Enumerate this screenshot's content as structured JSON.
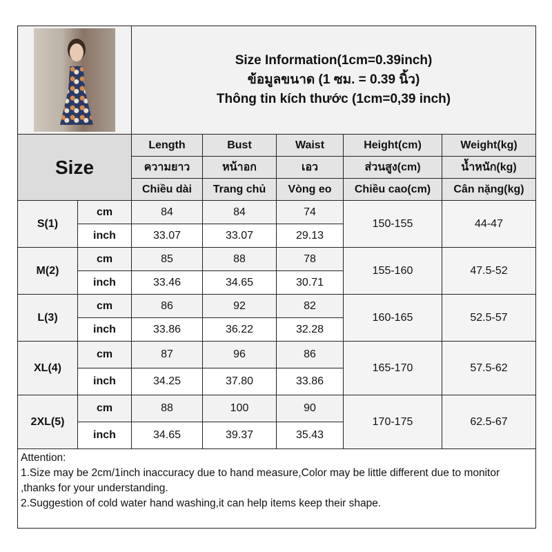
{
  "title": {
    "en": "Size Information(1cm=0.39inch)",
    "th": "ข้อมูลขนาด (1 ซม. = 0.39 นิ้ว)",
    "vi": "Thông tin kích thước (1cm=0,39 inch)"
  },
  "size_label": "Size",
  "columns": [
    {
      "en": "Length",
      "th": "ความยาว",
      "vi": "Chiều dài"
    },
    {
      "en": "Bust",
      "th": "หน้าอก",
      "vi": "Trang chủ"
    },
    {
      "en": "Waist",
      "th": "เอว",
      "vi": "Vòng eo"
    },
    {
      "en": "Height(cm)",
      "th": "ส่วนสูง(cm)",
      "vi": "Chiều cao(cm)"
    },
    {
      "en": "Weight(kg)",
      "th": "น้ำหนัก(kg)",
      "vi": "Cân nặng(kg)"
    }
  ],
  "units": {
    "cm": "cm",
    "inch": "inch"
  },
  "rows": [
    {
      "size": "S(1)",
      "cm": [
        "84",
        "84",
        "74"
      ],
      "inch": [
        "33.07",
        "33.07",
        "29.13"
      ],
      "height": "150-155",
      "weight": "44-47"
    },
    {
      "size": "M(2)",
      "cm": [
        "85",
        "88",
        "78"
      ],
      "inch": [
        "33.46",
        "34.65",
        "30.71"
      ],
      "height": "155-160",
      "weight": "47.5-52"
    },
    {
      "size": "L(3)",
      "cm": [
        "86",
        "92",
        "82"
      ],
      "inch": [
        "33.86",
        "36.22",
        "32.28"
      ],
      "height": "160-165",
      "weight": "52.5-57"
    },
    {
      "size": "XL(4)",
      "cm": [
        "87",
        "96",
        "86"
      ],
      "inch": [
        "34.25",
        "37.80",
        "33.86"
      ],
      "height": "165-170",
      "weight": "57.5-62"
    },
    {
      "size": "2XL(5)",
      "cm": [
        "88",
        "100",
        "90"
      ],
      "inch": [
        "34.65",
        "39.37",
        "35.43"
      ],
      "height": "170-175",
      "weight": "62.5-67"
    }
  ],
  "attention": {
    "heading": "Attention:",
    "line1": "1.Size may be 2cm/1inch inaccuracy due to hand measure,Color may be little different due to monitor ,thanks for your understanding.",
    "line2": "2.Suggestion of cold water hand washing,it can help items keep their shape."
  }
}
